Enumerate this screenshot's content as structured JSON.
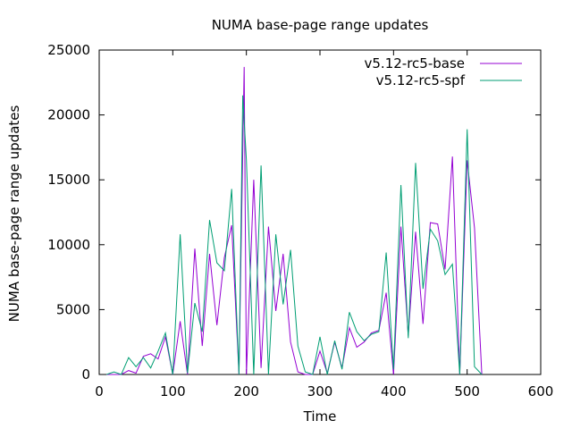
{
  "chart_data": {
    "type": "line",
    "title": "NUMA base-page range updates",
    "xlabel": "Time",
    "ylabel": "NUMA base-page range updates",
    "xlim": [
      0,
      600
    ],
    "ylim": [
      0,
      25000
    ],
    "xticks": [
      0,
      100,
      200,
      300,
      400,
      500,
      600
    ],
    "yticks": [
      0,
      5000,
      10000,
      15000,
      20000,
      25000
    ],
    "grid": false,
    "legend": "top-right",
    "series": [
      {
        "name": "v5.12-rc5-base",
        "color": "#9400d3",
        "x": [
          10,
          20,
          30,
          40,
          50,
          60,
          70,
          80,
          90,
          100,
          110,
          120,
          130,
          140,
          150,
          160,
          170,
          180,
          190,
          197,
          200,
          210,
          220,
          230,
          240,
          250,
          260,
          270,
          280,
          290,
          300,
          310,
          320,
          330,
          340,
          350,
          360,
          370,
          380,
          390,
          400,
          410,
          420,
          430,
          440,
          450,
          460,
          470,
          480,
          490,
          500,
          510,
          520
        ],
        "y": [
          0,
          0,
          0,
          300,
          100,
          1400,
          1600,
          1200,
          2900,
          0,
          4100,
          0,
          9700,
          2200,
          9300,
          3800,
          9000,
          11500,
          0,
          23700,
          0,
          15000,
          500,
          11400,
          4900,
          9300,
          2500,
          200,
          0,
          0,
          1800,
          100,
          2500,
          500,
          3600,
          2100,
          2500,
          3200,
          3400,
          6300,
          0,
          11400,
          3000,
          11000,
          3900,
          11700,
          11600,
          8100,
          16800,
          0,
          16500,
          11300,
          0
        ]
      },
      {
        "name": "v5.12-rc5-spf",
        "color": "#009e73",
        "x": [
          10,
          20,
          30,
          40,
          50,
          60,
          70,
          80,
          90,
          100,
          110,
          120,
          130,
          140,
          150,
          160,
          170,
          180,
          190,
          195,
          200,
          210,
          220,
          230,
          240,
          250,
          260,
          270,
          280,
          290,
          300,
          310,
          320,
          330,
          340,
          350,
          360,
          370,
          380,
          390,
          400,
          410,
          420,
          430,
          440,
          450,
          460,
          470,
          480,
          490,
          500,
          510,
          520
        ],
        "y": [
          0,
          200,
          0,
          1300,
          600,
          1300,
          500,
          1800,
          3200,
          0,
          10800,
          100,
          5500,
          3300,
          11900,
          8600,
          8000,
          14300,
          0,
          21500,
          16500,
          0,
          16100,
          0,
          10800,
          5400,
          9600,
          2200,
          200,
          0,
          2900,
          0,
          2600,
          400,
          4800,
          3300,
          2600,
          3100,
          3300,
          9400,
          400,
          14600,
          2800,
          16300,
          6600,
          11200,
          10300,
          7700,
          8500,
          0,
          18900,
          600,
          0
        ]
      }
    ]
  }
}
